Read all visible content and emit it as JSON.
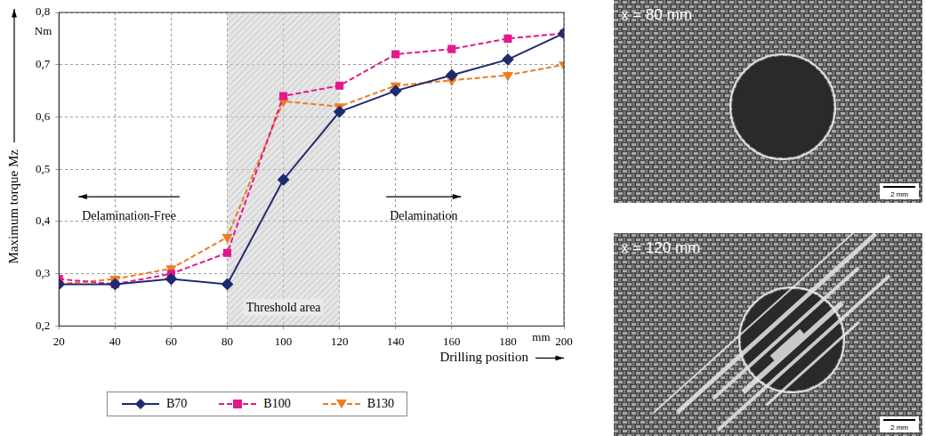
{
  "chart_data": {
    "type": "line",
    "x_label": "Drilling position",
    "x_unit": "mm",
    "y_label": "Maximum torque Mz",
    "y_unit": "Nm",
    "x": [
      20,
      40,
      60,
      80,
      100,
      120,
      140,
      160,
      180,
      200
    ],
    "xlim": [
      20,
      200
    ],
    "xticks": [
      20,
      40,
      60,
      80,
      100,
      120,
      140,
      160,
      180,
      200
    ],
    "ylim": [
      0.2,
      0.8
    ],
    "yticks": [
      {
        "value": 0.2,
        "label": "0,2"
      },
      {
        "value": 0.3,
        "label": "0,3"
      },
      {
        "value": 0.4,
        "label": "0,4"
      },
      {
        "value": 0.5,
        "label": "0,5"
      },
      {
        "value": 0.6,
        "label": "0,6"
      },
      {
        "value": 0.7,
        "label": "0,7"
      },
      {
        "value": 0.8,
        "label": "0,8"
      }
    ],
    "grid": true,
    "legend": "bottom",
    "series": [
      {
        "name": "B70",
        "color": "#1f2a6e",
        "marker": "diamond",
        "line_style": "solid",
        "values": [
          0.28,
          0.28,
          0.29,
          0.28,
          0.48,
          0.61,
          0.65,
          0.68,
          0.71,
          0.76
        ]
      },
      {
        "name": "B100",
        "color": "#e6178c",
        "marker": "square",
        "line_style": "dashed",
        "values": [
          0.29,
          0.28,
          0.3,
          0.34,
          0.64,
          0.66,
          0.72,
          0.73,
          0.75,
          0.76
        ]
      },
      {
        "name": "B130",
        "color": "#ee7d22",
        "marker": "triangle-down",
        "line_style": "dashed",
        "values": [
          0.28,
          0.29,
          0.31,
          0.37,
          0.63,
          0.62,
          0.66,
          0.67,
          0.68,
          0.7
        ]
      }
    ],
    "shaded_region": {
      "x": [
        80,
        120
      ],
      "label": "Threshold area",
      "label_y": 0.235
    },
    "annotations": [
      {
        "text": "Delamination-Free",
        "x": 45,
        "y": 0.41,
        "arrow": "left"
      },
      {
        "text": "Delamination",
        "x": 150,
        "y": 0.41,
        "arrow": "right"
      }
    ]
  },
  "images": [
    {
      "label": "x = 80 mm",
      "scale_bar": "2 mm",
      "delamination": false
    },
    {
      "label": "x = 120 mm",
      "scale_bar": "2 mm",
      "delamination": true
    }
  ]
}
